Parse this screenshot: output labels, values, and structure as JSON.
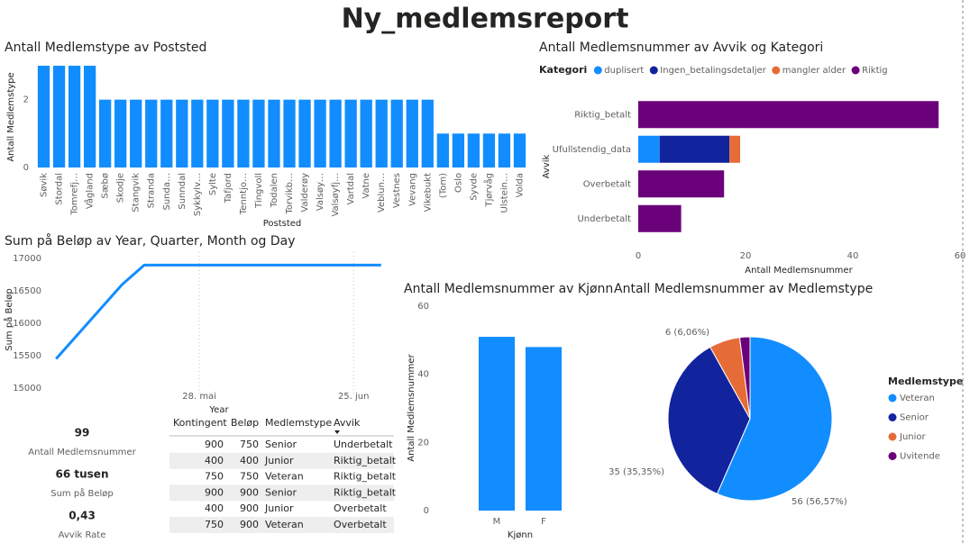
{
  "title": "Ny_medlemsreport",
  "chart_data": [
    {
      "type": "bar",
      "title": "Antall Medlemstype av Poststed",
      "ylabel": "Antall Medlemstype",
      "xlabel": "Poststed",
      "categories": [
        "Søvik",
        "Stordal",
        "Tomrefj…",
        "Vågland",
        "Sæbø",
        "Skodje",
        "Stangvik",
        "Stranda",
        "Sunda…",
        "Sunndal",
        "Sykkylv…",
        "Sylte",
        "Tafjord",
        "Tenntjo…",
        "Tingvoll",
        "Todalen",
        "Torvikb…",
        "Valderøy",
        "Valsøy…",
        "Valsøyfj…",
        "Vartdal",
        "Vatne",
        "Veblun…",
        "Vestnes",
        "Vevang",
        "Vikebukt",
        "(Tom)",
        "Oslo",
        "Syvde",
        "Tjørvåg",
        "Ulstein…",
        "Volda"
      ],
      "values": [
        3,
        3,
        3,
        3,
        2,
        2,
        2,
        2,
        2,
        2,
        2,
        2,
        2,
        2,
        2,
        2,
        2,
        2,
        2,
        2,
        2,
        2,
        2,
        2,
        2,
        2,
        1,
        1,
        1,
        1,
        1,
        1
      ],
      "color": "#118DFF",
      "ylim": [
        0,
        3
      ],
      "yticks": [
        0,
        2
      ]
    },
    {
      "type": "hbar_stacked",
      "title": "Antall Medlemsnummer av Avvik og Kategori",
      "legend_title": "Kategori",
      "xlabel": "Antall Medlemsnummer",
      "ylabel": "Avvik",
      "categories": [
        "Riktig_betalt",
        "Ufullstendig_data",
        "Overbetalt",
        "Underbetalt"
      ],
      "series": [
        {
          "name": "duplisert",
          "color": "#118DFF",
          "values": [
            null,
            4,
            null,
            null
          ]
        },
        {
          "name": "Ingen_betalingsdetaljer",
          "color": "#12239E",
          "values": [
            null,
            13,
            null,
            null
          ]
        },
        {
          "name": "mangler alder",
          "color": "#E66C37",
          "values": [
            null,
            2,
            null,
            null
          ]
        },
        {
          "name": "Riktig",
          "color": "#6B007B",
          "values": [
            56,
            null,
            16,
            8
          ]
        }
      ],
      "xlim": [
        0,
        60
      ],
      "xticks": [
        0,
        20,
        40,
        60
      ]
    },
    {
      "type": "line",
      "title": "Sum på Beløp av Year, Quarter, Month og Day",
      "xlabel": "Year",
      "ylabel": "Sum på Beløp",
      "x": [
        "2. mai",
        "14. mai",
        "18. mai",
        "30. jun"
      ],
      "values": [
        15450,
        16600,
        16900,
        16900
      ],
      "color": "#118DFF",
      "xlim": [
        "30. apr",
        "2. jul"
      ],
      "xticks": [
        "28. mai",
        "25. jun"
      ],
      "ylim": [
        14900,
        17100
      ],
      "yticks": [
        15000,
        15500,
        16000,
        16500,
        17000
      ]
    },
    {
      "type": "bar",
      "title": "Antall Medlemsnummer av Kjønn",
      "xlabel": "Kjønn",
      "ylabel": "Antall Medlemsnummer",
      "categories": [
        "M",
        "F"
      ],
      "values": [
        51,
        48
      ],
      "color": "#118DFF",
      "ylim": [
        0,
        60
      ],
      "yticks": [
        0,
        20,
        40,
        60
      ]
    },
    {
      "type": "pie",
      "title": "Antall Medlemsnummer av Medlemstype",
      "legend_title": "Medlemstype",
      "categories": [
        "Veteran",
        "Senior",
        "Junior",
        "Uvitende"
      ],
      "values": [
        56,
        35,
        6,
        2
      ],
      "value_labels": [
        "56 (56,57%)",
        "35 (35,35%)",
        "6 (6,06%)",
        null
      ],
      "colors": [
        "#118DFF",
        "#12239E",
        "#E66C37",
        "#6B007B"
      ]
    }
  ],
  "cards": [
    {
      "value": 99,
      "label": "Antall Medlemsnummer"
    },
    {
      "value": "66 tusen",
      "label": "Sum på Beløp"
    },
    {
      "value": "0,43",
      "label": "Avvik Rate"
    }
  ],
  "table": {
    "columns": [
      "Kontingent",
      "Beløp",
      "Medlemstype",
      "Avvik"
    ],
    "rows": [
      [
        900,
        750,
        "Senior",
        "Underbetalt"
      ],
      [
        400,
        400,
        "Junior",
        "Riktig_betalt"
      ],
      [
        750,
        750,
        "Veteran",
        "Riktig_betalt"
      ],
      [
        900,
        900,
        "Senior",
        "Riktig_betalt"
      ],
      [
        400,
        900,
        "Junior",
        "Overbetalt"
      ],
      [
        750,
        900,
        "Veteran",
        "Overbetalt"
      ]
    ]
  }
}
